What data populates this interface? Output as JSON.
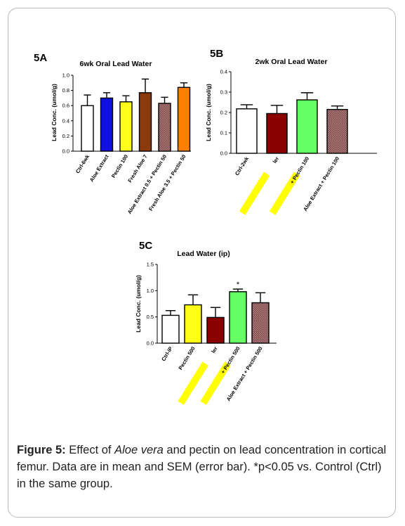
{
  "chart_data": [
    {
      "type": "bar",
      "panel_label": "5A",
      "title": "6wk Oral Lead Water",
      "ylabel": "Lead Conc. (umol/g)",
      "ylim": [
        0,
        1.0
      ],
      "yticks": [
        "0.0",
        "0.2",
        "0.4",
        "0.6",
        "0.8",
        "1.0"
      ],
      "categories": [
        "Ctrl-6wk",
        "Aloe Extract",
        "Pectin 100",
        "Fresh Aloe 7",
        "Aloe Extract 0.5 + Pectin 50",
        "Fresh Aloe 3.5 + Pectin 50"
      ],
      "values": [
        0.6,
        0.7,
        0.65,
        0.77,
        0.63,
        0.84
      ],
      "errors": [
        0.14,
        0.07,
        0.08,
        0.18,
        0.08,
        0.06
      ],
      "colors": [
        "#ffffff",
        "#1010e0",
        "#ffff1a",
        "#8b3a0e",
        "#7a4444",
        "#ff8000"
      ],
      "patterns": [
        "",
        "",
        "",
        "",
        "cross",
        ""
      ],
      "highlighted_categories": [],
      "significance": [
        "",
        "",
        "",
        "",
        "",
        ""
      ]
    },
    {
      "type": "bar",
      "panel_label": "5B",
      "title": "2wk Oral Lead Water",
      "ylabel": "Lead Conc. (umol/g)",
      "ylim": [
        0,
        0.4
      ],
      "yticks": [
        "0.0",
        "0.1",
        "0.2",
        "0.3",
        "0.4"
      ],
      "categories": [
        "Ctrl-2wk",
        "ler",
        "+ Pectin 100",
        "Aloe Extract + Pectin 100"
      ],
      "values": [
        0.218,
        0.195,
        0.262,
        0.215
      ],
      "errors": [
        0.02,
        0.04,
        0.035,
        0.017
      ],
      "colors": [
        "#ffffff",
        "#8b0000",
        "#66ff66",
        "#7a4444"
      ],
      "patterns": [
        "",
        "",
        "",
        "cross"
      ],
      "highlighted_categories": [
        1,
        2
      ],
      "significance": [
        "",
        "",
        "",
        ""
      ]
    },
    {
      "type": "bar",
      "panel_label": "5C",
      "title": "Lead Water (ip)",
      "ylabel": "Lead Conc. (umol/g)",
      "ylim": [
        0,
        1.5
      ],
      "yticks": [
        "0.0",
        "0.5",
        "1.0",
        "1.5"
      ],
      "categories": [
        "Ctrl-iP",
        "Pectin 500",
        "ler",
        "+ Pectin 500",
        "Aloe Extract + Pectin 500"
      ],
      "values": [
        0.53,
        0.73,
        0.49,
        0.98,
        0.77
      ],
      "errors": [
        0.09,
        0.19,
        0.19,
        0.05,
        0.19
      ],
      "colors": [
        "#ffffff",
        "#ffff1a",
        "#8b0000",
        "#66ff66",
        "#7a4444"
      ],
      "patterns": [
        "",
        "",
        "",
        "",
        "cross"
      ],
      "highlighted_categories": [
        2,
        3
      ],
      "significance": [
        "",
        "",
        "",
        "*",
        ""
      ]
    }
  ],
  "caption": {
    "label": "Figure 5:",
    "text_before": " Effect of ",
    "italic": "Aloe vera",
    "text_after": " and pectin on lead concentration in cortical femur. Data are in mean and SEM (error bar). *p<0.05 vs. Control (Ctrl) in the same group."
  },
  "style": {
    "highlight_color": "#ffff00",
    "axis_color": "#000000",
    "border_color": "#b9b9b9"
  }
}
